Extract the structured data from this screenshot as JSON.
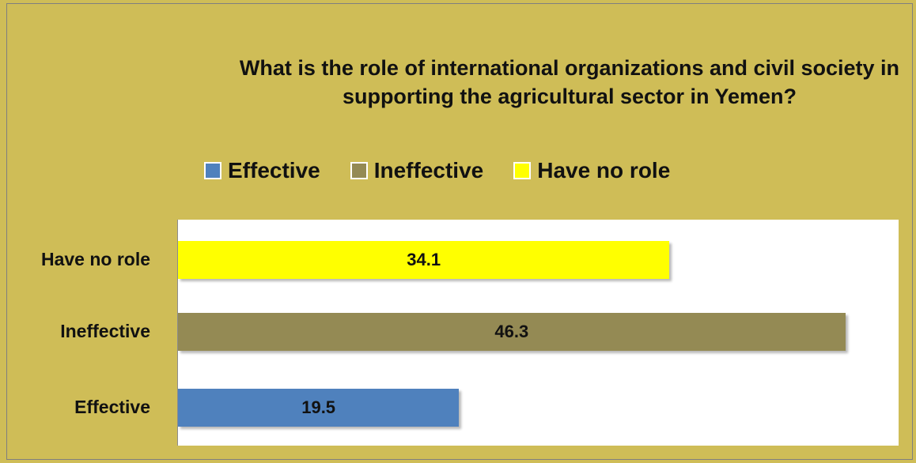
{
  "chart_data": {
    "type": "bar",
    "orientation": "horizontal",
    "title": "What is the role of international organizations and civil society in supporting the agricultural sector in Yemen?",
    "categories": [
      "Have no role",
      "Ineffective",
      "Effective"
    ],
    "values": [
      34.1,
      46.3,
      19.5
    ],
    "colors": [
      "#ffff00",
      "#948a54",
      "#4f81bd"
    ],
    "xlim": [
      0,
      50
    ],
    "grid": false,
    "legend": {
      "placement": "top",
      "entries": [
        {
          "label": "Effective",
          "color": "#4f81bd"
        },
        {
          "label": "Ineffective",
          "color": "#948a54"
        },
        {
          "label": "Have no role",
          "color": "#ffff00"
        }
      ]
    }
  }
}
